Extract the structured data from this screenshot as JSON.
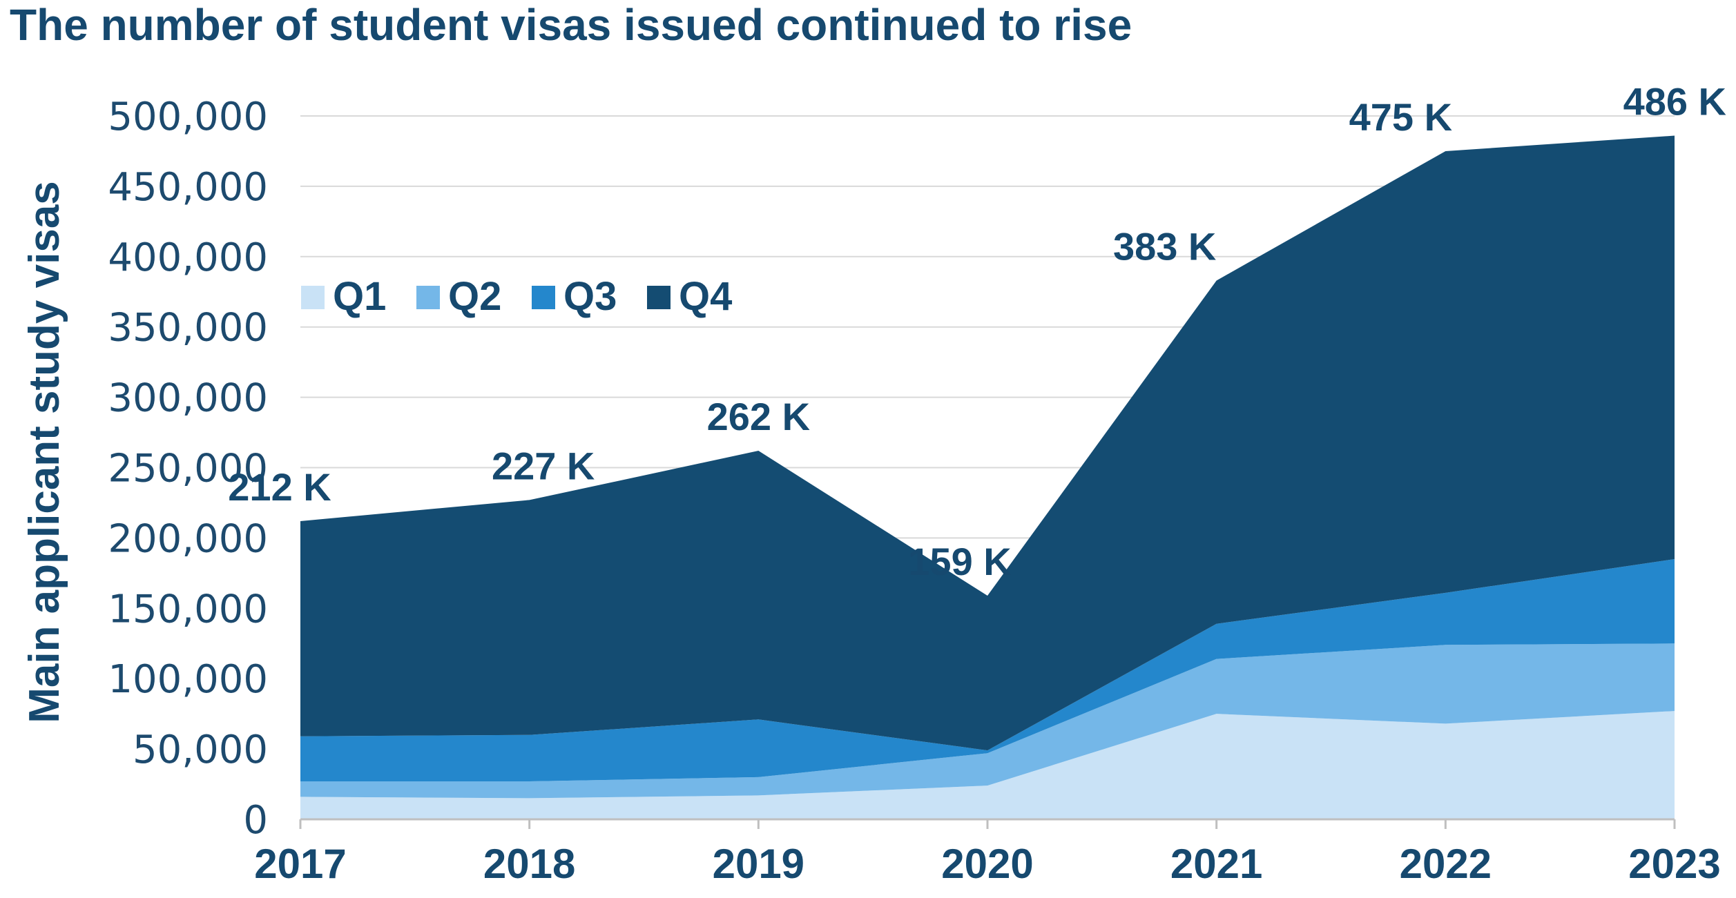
{
  "chart_data": {
    "type": "area",
    "stacked": true,
    "title": "The number of student visas issued continued to rise",
    "ylabel": "Main applicant study visas",
    "xlabel": "",
    "x": [
      "2017",
      "2018",
      "2019",
      "2020",
      "2021",
      "2022",
      "2023"
    ],
    "ylim": [
      0,
      500000
    ],
    "yticks": [
      0,
      50000,
      100000,
      150000,
      200000,
      250000,
      300000,
      350000,
      400000,
      450000,
      500000
    ],
    "ytick_labels": [
      "0",
      "50,000",
      "100,000",
      "150,000",
      "200,000",
      "250,000",
      "300,000",
      "350,000",
      "400,000",
      "450,000",
      "500,000"
    ],
    "grid": true,
    "legend_position": "top-left",
    "series": [
      {
        "name": "Q1",
        "color": "#c9e2f6",
        "values": [
          16000,
          15000,
          17000,
          24000,
          75000,
          68000,
          77000
        ]
      },
      {
        "name": "Q2",
        "color": "#74b7e8",
        "values": [
          11000,
          12000,
          13000,
          23000,
          39000,
          56000,
          48000
        ]
      },
      {
        "name": "Q3",
        "color": "#2487cc",
        "values": [
          32000,
          33000,
          41000,
          2000,
          25000,
          37000,
          60000
        ]
      },
      {
        "name": "Q4",
        "color": "#144c72",
        "values": [
          153000,
          167000,
          191000,
          110000,
          244000,
          314000,
          301000
        ]
      }
    ],
    "totals_labels": [
      "212 K",
      "227 K",
      "262 K",
      "159 K",
      "383 K",
      "475 K",
      "486 K"
    ]
  }
}
